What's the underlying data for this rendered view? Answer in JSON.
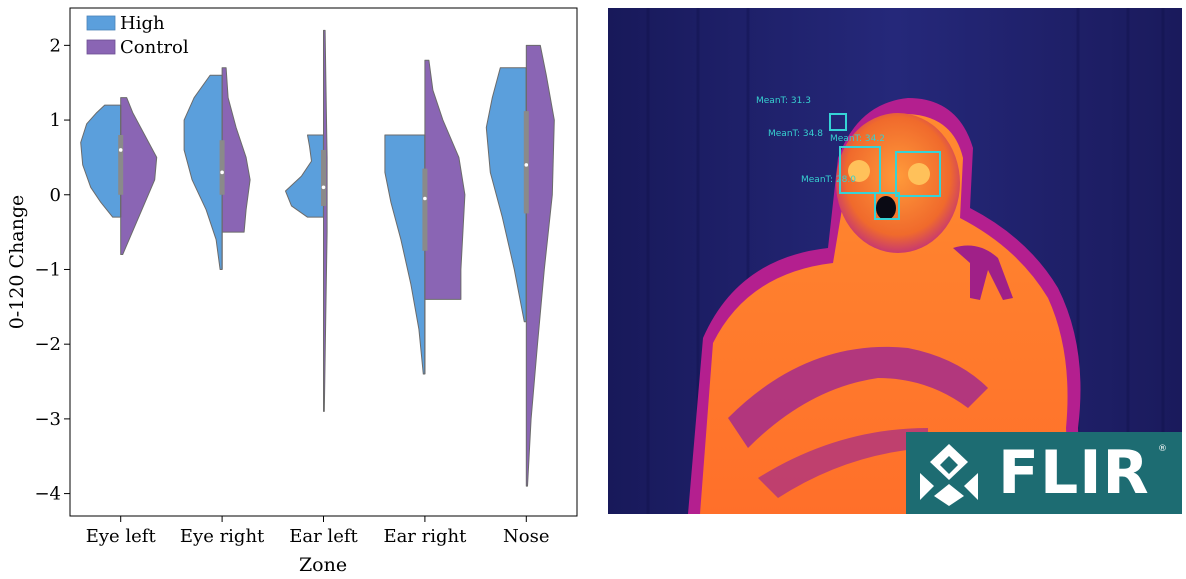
{
  "chart_data": {
    "type": "violin",
    "xlabel": "Zone",
    "ylabel": "0-120 Change",
    "ylim": [
      -4.3,
      2.5
    ],
    "yticks": [
      2,
      1,
      0,
      -1,
      -2,
      -3,
      -4
    ],
    "ytick_labels": [
      "2",
      "1",
      "0",
      "−1",
      "−2",
      "−3",
      "−4"
    ],
    "categories": [
      "Eye left",
      "Eye right",
      "Ear left",
      "Ear right",
      "Nose"
    ],
    "legend_position": "top-left",
    "series": [
      {
        "name": "High",
        "color": "#5b9fdc",
        "side": "left",
        "ranges": [
          [
            -0.3,
            1.2
          ],
          [
            -1.0,
            1.6
          ],
          [
            -0.3,
            0.8
          ],
          [
            -2.4,
            0.8
          ],
          [
            -1.7,
            1.7
          ]
        ],
        "medians": [
          0.6,
          0.3,
          0.1,
          -0.05,
          0.4
        ],
        "quartiles": [
          [
            0.0,
            0.8
          ],
          [
            0.0,
            0.73
          ],
          [
            -0.15,
            0.6
          ],
          [
            -0.75,
            0.35
          ],
          [
            -0.25,
            1.12
          ]
        ],
        "profiles": [
          [
            [
              -0.3,
              0.2
            ],
            [
              -0.1,
              0.5
            ],
            [
              0.1,
              0.75
            ],
            [
              0.4,
              0.95
            ],
            [
              0.7,
              1.0
            ],
            [
              0.95,
              0.85
            ],
            [
              1.1,
              0.6
            ],
            [
              1.2,
              0.4
            ]
          ],
          [
            [
              -1.0,
              0.05
            ],
            [
              -0.6,
              0.15
            ],
            [
              -0.2,
              0.4
            ],
            [
              0.2,
              0.75
            ],
            [
              0.6,
              0.95
            ],
            [
              1.0,
              0.95
            ],
            [
              1.3,
              0.7
            ],
            [
              1.6,
              0.3
            ]
          ],
          [
            [
              -0.3,
              0.4
            ],
            [
              -0.15,
              0.8
            ],
            [
              0.05,
              0.95
            ],
            [
              0.25,
              0.55
            ],
            [
              0.45,
              0.3
            ],
            [
              0.65,
              0.35
            ],
            [
              0.8,
              0.4
            ]
          ],
          [
            [
              -2.4,
              0.04
            ],
            [
              -1.8,
              0.15
            ],
            [
              -1.2,
              0.35
            ],
            [
              -0.6,
              0.6
            ],
            [
              -0.1,
              0.85
            ],
            [
              0.3,
              1.0
            ],
            [
              0.6,
              1.0
            ],
            [
              0.8,
              1.0
            ]
          ],
          [
            [
              -1.7,
              0.05
            ],
            [
              -1.0,
              0.3
            ],
            [
              -0.3,
              0.6
            ],
            [
              0.3,
              0.9
            ],
            [
              0.9,
              1.0
            ],
            [
              1.3,
              0.85
            ],
            [
              1.7,
              0.65
            ]
          ]
        ]
      },
      {
        "name": "Control",
        "color": "#8a65b4",
        "side": "right",
        "ranges": [
          [
            -0.8,
            1.3
          ],
          [
            -0.5,
            1.7
          ],
          [
            -2.9,
            2.2
          ],
          [
            -1.4,
            1.8
          ],
          [
            -3.9,
            2.0
          ]
        ],
        "profiles": [
          [
            [
              -0.8,
              0.05
            ],
            [
              -0.3,
              0.45
            ],
            [
              0.2,
              0.85
            ],
            [
              0.5,
              0.9
            ],
            [
              0.8,
              0.6
            ],
            [
              1.1,
              0.3
            ],
            [
              1.3,
              0.15
            ]
          ],
          [
            [
              -0.5,
              0.55
            ],
            [
              -0.2,
              0.6
            ],
            [
              0.2,
              0.7
            ],
            [
              0.5,
              0.6
            ],
            [
              0.9,
              0.35
            ],
            [
              1.3,
              0.15
            ],
            [
              1.7,
              0.1
            ]
          ],
          [
            [
              -2.9,
              0.02
            ],
            [
              -1.5,
              0.06
            ],
            [
              -0.5,
              0.09
            ],
            [
              0.5,
              0.09
            ],
            [
              1.5,
              0.06
            ],
            [
              2.2,
              0.04
            ]
          ],
          [
            [
              -1.4,
              0.9
            ],
            [
              -1.0,
              0.9
            ],
            [
              -0.5,
              0.95
            ],
            [
              0.0,
              1.0
            ],
            [
              0.5,
              0.85
            ],
            [
              1.0,
              0.45
            ],
            [
              1.4,
              0.2
            ],
            [
              1.8,
              0.1
            ]
          ],
          [
            [
              -3.9,
              0.03
            ],
            [
              -3.0,
              0.12
            ],
            [
              -2.0,
              0.28
            ],
            [
              -1.0,
              0.45
            ],
            [
              0.0,
              0.65
            ],
            [
              1.0,
              0.7
            ],
            [
              1.6,
              0.5
            ],
            [
              2.0,
              0.35
            ]
          ]
        ]
      }
    ]
  },
  "thermal_image": {
    "measurements": [
      "MeanT: 31.3",
      "MeanT: 34.8",
      "MeanT: 34.2",
      "MeanT: 28.0"
    ],
    "logo_text": "FLIR",
    "logo_mark": "®"
  }
}
